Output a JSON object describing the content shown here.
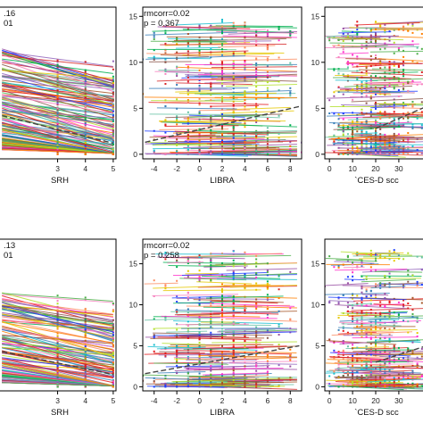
{
  "chart_data": [
    {
      "type": "scatter",
      "panel": "top-left",
      "xlabel": "SRH",
      "x_ticks": [
        "3",
        "4",
        "5"
      ],
      "xlim": [
        0.8,
        5.1
      ],
      "ylim": [
        -0.5,
        16
      ],
      "stat_lines": [
        ".16",
        "01"
      ],
      "x_values": [
        1,
        2,
        3,
        4,
        5
      ],
      "fit_line": {
        "x": [
          1,
          5
        ],
        "y": [
          4.2,
          1.2
        ]
      }
    },
    {
      "type": "scatter",
      "panel": "top-middle",
      "xlabel": "LIBRA",
      "x_ticks": [
        "-4",
        "-2",
        "0",
        "2",
        "4",
        "6",
        "8"
      ],
      "y_ticks": [
        "0",
        "5",
        "10",
        "15"
      ],
      "xlim": [
        -5,
        9
      ],
      "ylim": [
        -0.5,
        16
      ],
      "stat_lines": [
        "rmcorr=0.02",
        "p = 0.367"
      ],
      "fit_line": {
        "x": [
          -4.8,
          8.8
        ],
        "y": [
          1.3,
          5.2
        ]
      }
    },
    {
      "type": "scatter",
      "panel": "top-right",
      "xlabel": "`CES-D scc",
      "x_ticks": [
        "0",
        "10",
        "20",
        "30"
      ],
      "y_ticks": [
        "0",
        "5",
        "10",
        "15"
      ],
      "xlim": [
        -2,
        42
      ],
      "ylim": [
        -0.5,
        16
      ],
      "fit_line": {
        "x": [
          20,
          42
        ],
        "y": [
          2.8,
          5.2
        ]
      }
    },
    {
      "type": "scatter",
      "panel": "bottom-left",
      "xlabel": "SRH",
      "x_ticks": [
        "3",
        "4",
        "5"
      ],
      "xlim": [
        0.8,
        5.1
      ],
      "ylim": [
        -0.5,
        18
      ],
      "stat_lines": [
        ".13",
        "01"
      ],
      "x_values": [
        1,
        2,
        3,
        4,
        5
      ],
      "fit_line": {
        "x": [
          1,
          5
        ],
        "y": [
          4.3,
          1.5
        ]
      }
    },
    {
      "type": "scatter",
      "panel": "bottom-middle",
      "xlabel": "LIBRA",
      "x_ticks": [
        "-4",
        "-2",
        "0",
        "2",
        "4",
        "6",
        "8"
      ],
      "y_ticks": [
        "0",
        "5",
        "10",
        "15"
      ],
      "xlim": [
        -5,
        9
      ],
      "ylim": [
        -0.5,
        18
      ],
      "stat_lines": [
        "rmcorr=0.02",
        "p = 0.258"
      ],
      "fit_line": {
        "x": [
          -4.8,
          8.8
        ],
        "y": [
          1.6,
          5.0
        ]
      }
    },
    {
      "type": "scatter",
      "panel": "bottom-right",
      "xlabel": "`CES-D scc",
      "x_ticks": [
        "0",
        "10",
        "20",
        "30"
      ],
      "y_ticks": [
        "0",
        "5",
        "10",
        "15"
      ],
      "xlim": [
        -2,
        42
      ],
      "ylim": [
        -0.5,
        18
      ],
      "fit_line": {
        "x": [
          20,
          42
        ],
        "y": [
          3.0,
          5.0
        ]
      }
    }
  ],
  "colors": [
    "#e41a1c",
    "#377eb8",
    "#4daf4a",
    "#984ea3",
    "#ff7f00",
    "#e6c700",
    "#a65628",
    "#f781bf",
    "#17becf",
    "#1f3fff",
    "#00b050",
    "#ff33cc",
    "#8c564b",
    "#66c2a5",
    "#fc8d62",
    "#b2df2b",
    "#d62728",
    "#9467bd"
  ],
  "fit_line_color": "#444444",
  "axis_color": "#000000"
}
